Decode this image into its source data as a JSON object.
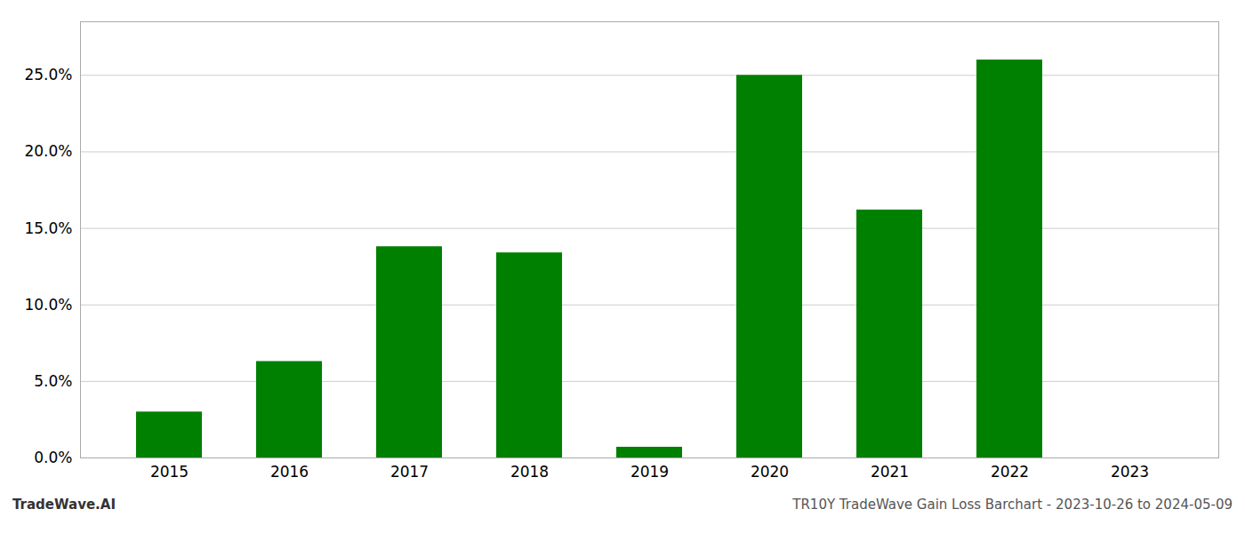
{
  "chart_data": {
    "type": "bar",
    "categories": [
      "2015",
      "2016",
      "2017",
      "2018",
      "2019",
      "2020",
      "2021",
      "2022",
      "2023"
    ],
    "values": [
      0.03,
      0.063,
      0.138,
      0.134,
      0.007,
      0.25,
      0.162,
      0.26,
      null
    ],
    "color": "#008000",
    "ylim": [
      0,
      0.285
    ],
    "yticks": [
      {
        "value": 0.0,
        "label": "0.0%"
      },
      {
        "value": 0.05,
        "label": "5.0%"
      },
      {
        "value": 0.1,
        "label": "10.0%"
      },
      {
        "value": 0.15,
        "label": "15.0%"
      },
      {
        "value": 0.2,
        "label": "20.0%"
      },
      {
        "value": 0.25,
        "label": "25.0%"
      }
    ],
    "grid": true,
    "annotations": [
      "TradeWave.AI",
      "TR10Y TradeWave Gain Loss Barchart - 2023-10-26 to 2024-05-09"
    ]
  }
}
